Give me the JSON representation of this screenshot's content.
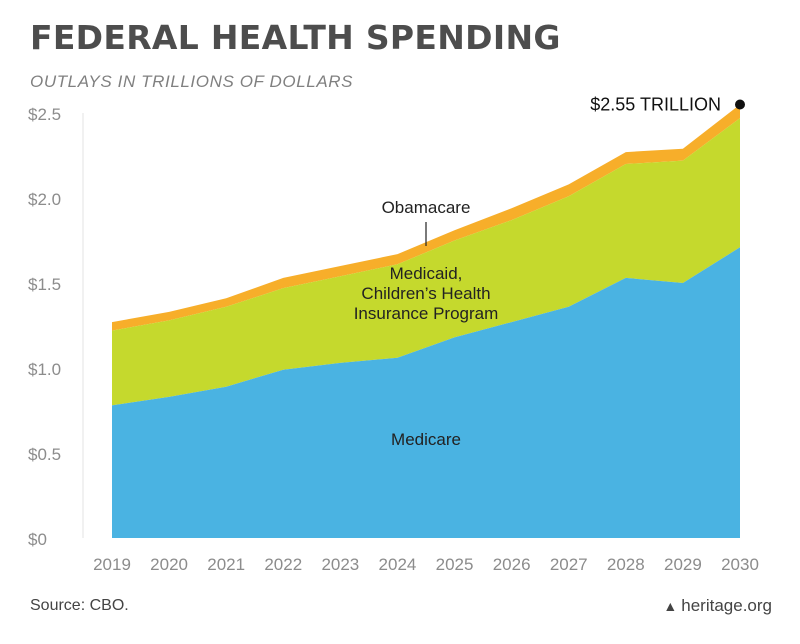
{
  "page": {
    "title": "FEDERAL HEALTH SPENDING",
    "subtitle": "OUTLAYS IN TRILLIONS OF DOLLARS",
    "source": "Source: CBO.",
    "brand": "heritage.org",
    "brand_icon": "liberty-bell-icon"
  },
  "chart_data": {
    "type": "area",
    "stacked": true,
    "x": [
      "2019",
      "2020",
      "2021",
      "2022",
      "2023",
      "2024",
      "2025",
      "2026",
      "2027",
      "2028",
      "2029",
      "2030"
    ],
    "series": [
      {
        "name": "Medicare",
        "color": "#4ab3e2",
        "values": [
          0.78,
          0.83,
          0.89,
          0.99,
          1.03,
          1.06,
          1.18,
          1.27,
          1.36,
          1.53,
          1.5,
          1.71
        ]
      },
      {
        "name": "Medicaid, Children’s Health Insurance Program",
        "color": "#c5d92d",
        "values": [
          0.44,
          0.45,
          0.47,
          0.48,
          0.51,
          0.55,
          0.57,
          0.6,
          0.65,
          0.67,
          0.72,
          0.76
        ]
      },
      {
        "name": "Obamacare",
        "color": "#f7ae2a",
        "values": [
          0.05,
          0.05,
          0.05,
          0.06,
          0.06,
          0.06,
          0.06,
          0.07,
          0.07,
          0.07,
          0.07,
          0.08
        ]
      }
    ],
    "ylim": [
      0,
      2.5
    ],
    "yticks": [
      {
        "value": 0,
        "label": "$0"
      },
      {
        "value": 0.5,
        "label": "$0.5"
      },
      {
        "value": 1.0,
        "label": "$1.0"
      },
      {
        "value": 1.5,
        "label": "$1.5"
      },
      {
        "value": 2.0,
        "label": "$2.0"
      },
      {
        "value": 2.5,
        "label": "$2.5"
      }
    ],
    "labels": {
      "medicare": "Medicare",
      "medicaid_lines": [
        "Medicaid,",
        "Children’s Health",
        "Insurance Program"
      ],
      "obamacare": "Obamacare"
    },
    "annotation": {
      "text": "$2.55 TRILLION",
      "x": "2030",
      "value": 2.55
    },
    "grid": false,
    "legend": "none"
  }
}
